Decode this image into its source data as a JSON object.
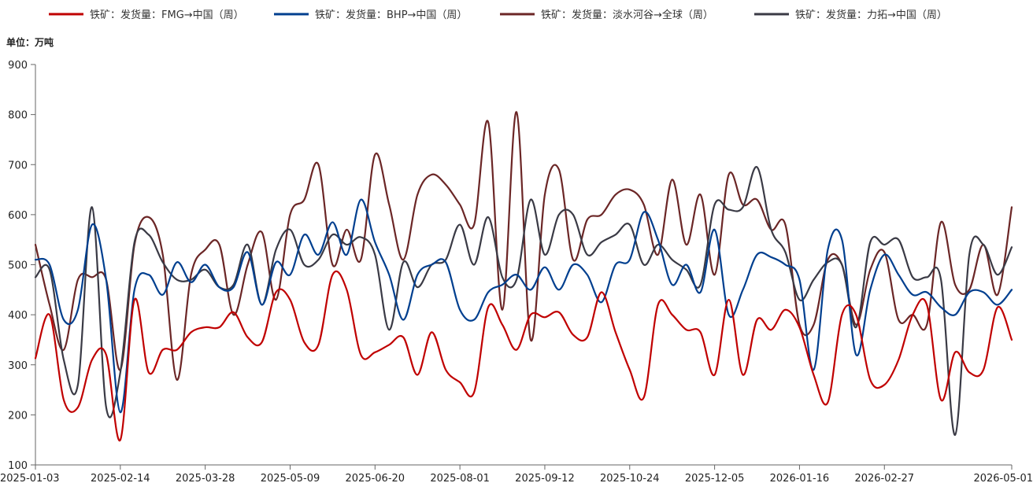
{
  "chart_data": {
    "type": "line",
    "title": "",
    "unit_label": "单位：万吨",
    "xlabel": "",
    "ylabel": "",
    "ylim": [
      100,
      900
    ],
    "y_ticks": [
      100,
      200,
      300,
      400,
      500,
      600,
      700,
      800,
      900
    ],
    "x_ticks": [
      "2025-01-03",
      "2025-02-14",
      "2025-03-28",
      "2025-05-09",
      "2025-06-20",
      "2025-08-01",
      "2025-09-12",
      "2025-10-24",
      "2025-12-05",
      "2026-01-16",
      "2026-02-27",
      "2026-05-01"
    ],
    "x_range": [
      "2025-01-03",
      "2026-05-01"
    ],
    "legend_position": "top",
    "grid": false,
    "series": [
      {
        "name": "铁矿：发货量：FMG→中国（周）",
        "color": "#c00000",
        "x": [
          "2025-01-03",
          "2025-01-10",
          "2025-01-17",
          "2025-01-24",
          "2025-01-31",
          "2025-02-07",
          "2025-02-14",
          "2025-02-21",
          "2025-02-28",
          "2025-03-07",
          "2025-03-14",
          "2025-03-21",
          "2025-03-28",
          "2025-04-04",
          "2025-04-11",
          "2025-04-18",
          "2025-04-25",
          "2025-05-02",
          "2025-05-09",
          "2025-05-16",
          "2025-05-23",
          "2025-05-30",
          "2025-06-06",
          "2025-06-13",
          "2025-06-20",
          "2025-06-27",
          "2025-07-04",
          "2025-07-11",
          "2025-07-18",
          "2025-07-25",
          "2025-08-01",
          "2025-08-08",
          "2025-08-15",
          "2025-08-22",
          "2025-08-29",
          "2025-09-05",
          "2025-09-12",
          "2025-09-19",
          "2025-09-26",
          "2025-10-03",
          "2025-10-10",
          "2025-10-17",
          "2025-10-24",
          "2025-10-31",
          "2025-11-07",
          "2025-11-14",
          "2025-11-21",
          "2025-11-28",
          "2025-12-05",
          "2025-12-12",
          "2025-12-19",
          "2025-12-26",
          "2026-01-02",
          "2026-01-09",
          "2026-01-16",
          "2026-01-23",
          "2026-01-30",
          "2026-02-06",
          "2026-02-13",
          "2026-02-20",
          "2026-02-27",
          "2026-03-06",
          "2026-03-13",
          "2026-03-20",
          "2026-03-27",
          "2026-04-03",
          "2026-04-10",
          "2026-04-17",
          "2026-04-24",
          "2026-05-01"
        ],
        "values": [
          313,
          400,
          230,
          215,
          310,
          320,
          150,
          430,
          285,
          330,
          330,
          365,
          375,
          375,
          405,
          355,
          345,
          445,
          430,
          345,
          340,
          480,
          450,
          320,
          325,
          340,
          355,
          280,
          365,
          290,
          265,
          245,
          415,
          380,
          330,
          400,
          395,
          405,
          360,
          355,
          445,
          365,
          290,
          235,
          420,
          400,
          370,
          365,
          280,
          430,
          280,
          390,
          370,
          410,
          375,
          280,
          225,
          400,
          400,
          270,
          260,
          310,
          400,
          420,
          230,
          325,
          285,
          290,
          415,
          350
        ]
      },
      {
        "name": "铁矿：发货量：BHP→中国（周）",
        "color": "#003f8f",
        "x": [
          "2025-01-03",
          "2025-01-10",
          "2025-01-17",
          "2025-01-24",
          "2025-01-31",
          "2025-02-07",
          "2025-02-14",
          "2025-02-21",
          "2025-02-28",
          "2025-03-07",
          "2025-03-14",
          "2025-03-21",
          "2025-03-28",
          "2025-04-04",
          "2025-04-11",
          "2025-04-18",
          "2025-04-25",
          "2025-05-02",
          "2025-05-09",
          "2025-05-16",
          "2025-05-23",
          "2025-05-30",
          "2025-06-06",
          "2025-06-13",
          "2025-06-20",
          "2025-06-27",
          "2025-07-04",
          "2025-07-11",
          "2025-07-18",
          "2025-07-25",
          "2025-08-01",
          "2025-08-08",
          "2025-08-15",
          "2025-08-22",
          "2025-08-29",
          "2025-09-05",
          "2025-09-12",
          "2025-09-19",
          "2025-09-26",
          "2025-10-03",
          "2025-10-10",
          "2025-10-17",
          "2025-10-24",
          "2025-10-31",
          "2025-11-07",
          "2025-11-14",
          "2025-11-21",
          "2025-11-28",
          "2025-12-05",
          "2025-12-12",
          "2025-12-19",
          "2025-12-26",
          "2026-01-02",
          "2026-01-09",
          "2026-01-16",
          "2026-01-23",
          "2026-01-30",
          "2026-02-06",
          "2026-02-13",
          "2026-02-20",
          "2026-02-27",
          "2026-03-06",
          "2026-03-13",
          "2026-03-20",
          "2026-03-27",
          "2026-04-03",
          "2026-04-10",
          "2026-04-17",
          "2026-04-24",
          "2026-05-01"
        ],
        "values": [
          510,
          500,
          390,
          410,
          580,
          470,
          205,
          450,
          480,
          440,
          505,
          465,
          500,
          455,
          455,
          525,
          420,
          505,
          480,
          560,
          520,
          585,
          520,
          630,
          545,
          480,
          390,
          480,
          500,
          505,
          410,
          390,
          445,
          460,
          480,
          450,
          495,
          450,
          500,
          480,
          425,
          500,
          510,
          605,
          550,
          460,
          500,
          445,
          570,
          400,
          450,
          520,
          515,
          500,
          470,
          290,
          530,
          550,
          320,
          450,
          520,
          480,
          440,
          445,
          415,
          400,
          445,
          445,
          420,
          450
        ]
      },
      {
        "name": "铁矿：发货量：淡水河谷→全球（周）",
        "color": "#6b2626",
        "x": [
          "2025-01-03",
          "2025-01-10",
          "2025-01-17",
          "2025-01-24",
          "2025-01-31",
          "2025-02-07",
          "2025-02-14",
          "2025-02-21",
          "2025-02-28",
          "2025-03-07",
          "2025-03-14",
          "2025-03-21",
          "2025-03-28",
          "2025-04-04",
          "2025-04-11",
          "2025-04-18",
          "2025-04-25",
          "2025-05-02",
          "2025-05-09",
          "2025-05-16",
          "2025-05-23",
          "2025-05-30",
          "2025-06-06",
          "2025-06-13",
          "2025-06-20",
          "2025-06-27",
          "2025-07-04",
          "2025-07-11",
          "2025-07-18",
          "2025-07-25",
          "2025-08-01",
          "2025-08-08",
          "2025-08-15",
          "2025-08-22",
          "2025-08-29",
          "2025-09-05",
          "2025-09-12",
          "2025-09-19",
          "2025-09-26",
          "2025-10-03",
          "2025-10-10",
          "2025-10-17",
          "2025-10-24",
          "2025-10-31",
          "2025-11-07",
          "2025-11-14",
          "2025-11-21",
          "2025-11-28",
          "2025-12-05",
          "2025-12-12",
          "2025-12-19",
          "2025-12-26",
          "2026-01-02",
          "2026-01-09",
          "2026-01-16",
          "2026-01-23",
          "2026-01-30",
          "2026-02-06",
          "2026-02-13",
          "2026-02-20",
          "2026-02-27",
          "2026-03-06",
          "2026-03-13",
          "2026-03-20",
          "2026-03-27",
          "2026-04-03",
          "2026-04-10",
          "2026-04-17",
          "2026-04-24",
          "2026-05-01"
        ],
        "values": [
          540,
          420,
          330,
          470,
          475,
          470,
          290,
          540,
          595,
          520,
          270,
          480,
          530,
          540,
          400,
          500,
          565,
          430,
          600,
          630,
          700,
          500,
          570,
          510,
          720,
          620,
          510,
          640,
          680,
          660,
          620,
          580,
          785,
          410,
          805,
          350,
          640,
          690,
          510,
          590,
          600,
          640,
          650,
          620,
          520,
          670,
          540,
          640,
          480,
          680,
          620,
          630,
          570,
          580,
          380,
          380,
          510,
          500,
          380,
          490,
          525,
          390,
          400,
          380,
          585,
          460,
          450,
          540,
          440,
          615
        ]
      },
      {
        "name": "铁矿：发货量：力拓→中国（周）",
        "color": "#3a3a45",
        "x": [
          "2025-01-03",
          "2025-01-10",
          "2025-01-17",
          "2025-01-24",
          "2025-01-31",
          "2025-02-07",
          "2025-02-14",
          "2025-02-21",
          "2025-02-28",
          "2025-03-07",
          "2025-03-14",
          "2025-03-21",
          "2025-03-28",
          "2025-04-04",
          "2025-04-11",
          "2025-04-18",
          "2025-04-25",
          "2025-05-02",
          "2025-05-09",
          "2025-05-16",
          "2025-05-23",
          "2025-05-30",
          "2025-06-06",
          "2025-06-13",
          "2025-06-20",
          "2025-06-27",
          "2025-07-04",
          "2025-07-11",
          "2025-07-18",
          "2025-07-25",
          "2025-08-01",
          "2025-08-08",
          "2025-08-15",
          "2025-08-22",
          "2025-08-29",
          "2025-09-05",
          "2025-09-12",
          "2025-09-19",
          "2025-09-26",
          "2025-10-03",
          "2025-10-10",
          "2025-10-17",
          "2025-10-24",
          "2025-10-31",
          "2025-11-07",
          "2025-11-14",
          "2025-11-21",
          "2025-11-28",
          "2025-12-05",
          "2025-12-12",
          "2025-12-19",
          "2025-12-26",
          "2026-01-02",
          "2026-01-09",
          "2026-01-16",
          "2026-01-23",
          "2026-01-30",
          "2026-02-06",
          "2026-02-13",
          "2026-02-20",
          "2026-02-27",
          "2026-03-06",
          "2026-03-13",
          "2026-03-20",
          "2026-03-27",
          "2026-04-03",
          "2026-04-10",
          "2026-04-17",
          "2026-04-24",
          "2026-05-01"
        ],
        "values": [
          475,
          490,
          310,
          260,
          615,
          215,
          285,
          545,
          560,
          505,
          470,
          470,
          490,
          455,
          460,
          540,
          420,
          530,
          570,
          500,
          510,
          560,
          540,
          555,
          520,
          370,
          505,
          455,
          500,
          510,
          580,
          500,
          595,
          475,
          470,
          630,
          520,
          600,
          600,
          520,
          545,
          560,
          580,
          500,
          540,
          510,
          490,
          460,
          620,
          610,
          615,
          695,
          570,
          525,
          430,
          470,
          505,
          500,
          375,
          545,
          540,
          550,
          475,
          475,
          470,
          160,
          520,
          540,
          480,
          535
        ]
      }
    ]
  }
}
